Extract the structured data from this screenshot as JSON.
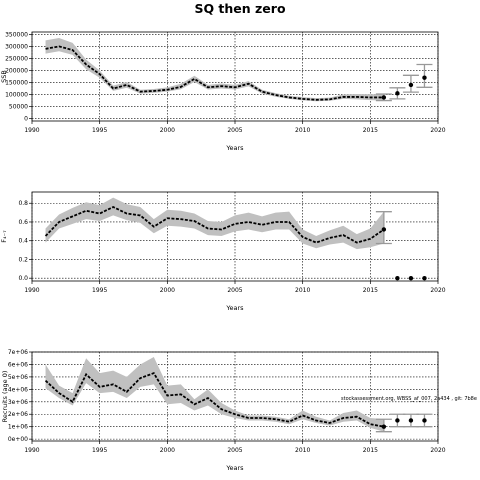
{
  "figure": {
    "title": "SQ then zero",
    "annotation": "stockassessment.org, WBSS_af_007, 2a434 , git: 7b8e"
  },
  "colors": {
    "band": "#c0c0c0",
    "line": "#000000",
    "proj_bar": "#999999",
    "grid": "#000000"
  },
  "chart_data": [
    {
      "type": "line",
      "title": "",
      "xlabel": "Years",
      "ylabel": "SSB",
      "xlim": [
        1990,
        2020
      ],
      "ylim": [
        -10000,
        360000
      ],
      "x_ticks": [
        "1990",
        "1995",
        "2000",
        "2005",
        "2010",
        "2015",
        "2020"
      ],
      "x_tick_values": [
        1990,
        1995,
        2000,
        2005,
        2010,
        2015,
        2020
      ],
      "y_ticks": [
        "0",
        "50000",
        "100000",
        "150000",
        "200000",
        "250000",
        "300000",
        "350000"
      ],
      "y_tick_values": [
        0,
        50000,
        100000,
        150000,
        200000,
        250000,
        300000,
        350000
      ],
      "grid": true,
      "years": [
        1991,
        1992,
        1993,
        1994,
        1995,
        1996,
        1997,
        1998,
        1999,
        2000,
        2001,
        2002,
        2003,
        2004,
        2005,
        2006,
        2007,
        2008,
        2009,
        2010,
        2011,
        2012,
        2013,
        2014,
        2015,
        2016
      ],
      "estimate": [
        290000,
        300000,
        285000,
        225000,
        185000,
        125000,
        140000,
        112000,
        115000,
        120000,
        132000,
        165000,
        130000,
        135000,
        130000,
        145000,
        112000,
        98000,
        88000,
        82000,
        78000,
        80000,
        90000,
        90000,
        88000,
        88000
      ],
      "lower": [
        270000,
        280000,
        265000,
        205000,
        170000,
        115000,
        128000,
        104000,
        107000,
        112000,
        122000,
        152000,
        121000,
        125000,
        121000,
        134000,
        104000,
        91000,
        82000,
        76000,
        72000,
        74000,
        82000,
        80000,
        77000,
        75000
      ],
      "upper": [
        325000,
        335000,
        315000,
        245000,
        200000,
        137000,
        152000,
        120000,
        123000,
        130000,
        145000,
        178000,
        140000,
        146000,
        140000,
        156000,
        120000,
        106000,
        95000,
        89000,
        85000,
        87000,
        100000,
        102000,
        101000,
        102000
      ],
      "projection_years": [
        2016,
        2017,
        2018,
        2019
      ],
      "projection_values": [
        88000,
        105000,
        140000,
        170000
      ],
      "projection_lower": [
        75000,
        82000,
        110000,
        130000
      ],
      "projection_upper": [
        102000,
        128000,
        180000,
        225000
      ]
    },
    {
      "type": "line",
      "title": "",
      "xlabel": "Years",
      "ylabel": "F₄₋₇",
      "xlim": [
        1990,
        2020
      ],
      "ylim": [
        -0.03,
        0.92
      ],
      "x_ticks": [
        "1990",
        "1995",
        "2000",
        "2005",
        "2010",
        "2015",
        "2020"
      ],
      "x_tick_values": [
        1990,
        1995,
        2000,
        2005,
        2010,
        2015,
        2020
      ],
      "y_ticks": [
        "0.0",
        "0.2",
        "0.4",
        "0.6",
        "0.8"
      ],
      "y_tick_values": [
        0.0,
        0.2,
        0.4,
        0.6,
        0.8
      ],
      "grid": true,
      "years": [
        1991,
        1992,
        1993,
        1994,
        1995,
        1996,
        1997,
        1998,
        1999,
        2000,
        2001,
        2002,
        2003,
        2004,
        2005,
        2006,
        2007,
        2008,
        2009,
        2010,
        2011,
        2012,
        2013,
        2014,
        2015,
        2016
      ],
      "estimate": [
        0.45,
        0.6,
        0.66,
        0.72,
        0.69,
        0.76,
        0.69,
        0.67,
        0.55,
        0.64,
        0.63,
        0.61,
        0.53,
        0.52,
        0.58,
        0.6,
        0.57,
        0.6,
        0.6,
        0.44,
        0.38,
        0.43,
        0.46,
        0.38,
        0.42,
        0.52
      ],
      "lower": [
        0.38,
        0.53,
        0.58,
        0.63,
        0.61,
        0.67,
        0.62,
        0.59,
        0.48,
        0.56,
        0.55,
        0.53,
        0.46,
        0.45,
        0.5,
        0.52,
        0.49,
        0.52,
        0.52,
        0.37,
        0.32,
        0.36,
        0.38,
        0.31,
        0.33,
        0.37
      ],
      "upper": [
        0.53,
        0.68,
        0.75,
        0.81,
        0.78,
        0.86,
        0.79,
        0.76,
        0.63,
        0.73,
        0.72,
        0.69,
        0.61,
        0.6,
        0.67,
        0.7,
        0.66,
        0.7,
        0.71,
        0.52,
        0.45,
        0.51,
        0.56,
        0.47,
        0.53,
        0.71
      ],
      "projection_years": [
        2016,
        2017,
        2018,
        2019
      ],
      "projection_values": [
        0.52,
        0.0,
        0.0,
        0.0
      ],
      "projection_lower": [
        0.37,
        0.0,
        0.0,
        0.0
      ],
      "projection_upper": [
        0.71,
        0.0,
        0.0,
        0.0
      ]
    },
    {
      "type": "line",
      "title": "",
      "xlabel": "Years",
      "ylabel": "Recruits (age 0)",
      "xlim": [
        1990,
        2020
      ],
      "ylim": [
        -150000,
        7000000
      ],
      "x_ticks": [
        "1990",
        "1995",
        "2000",
        "2005",
        "2010",
        "2015",
        "2020"
      ],
      "x_tick_values": [
        1990,
        1995,
        2000,
        2005,
        2010,
        2015,
        2020
      ],
      "y_ticks": [
        "0e+00",
        "1e+06",
        "2e+06",
        "3e+06",
        "4e+06",
        "5e+06",
        "6e+06",
        "7e+06"
      ],
      "y_tick_values": [
        0,
        1000000,
        2000000,
        3000000,
        4000000,
        5000000,
        6000000,
        7000000
      ],
      "grid": true,
      "years": [
        1991,
        1992,
        1993,
        1994,
        1995,
        1996,
        1997,
        1998,
        1999,
        2000,
        2001,
        2002,
        2003,
        2004,
        2005,
        2006,
        2007,
        2008,
        2009,
        2010,
        2011,
        2012,
        2013,
        2014,
        2015,
        2016
      ],
      "estimate": [
        4700000,
        3700000,
        3000000,
        5200000,
        4200000,
        4400000,
        3800000,
        4900000,
        5300000,
        3500000,
        3600000,
        2800000,
        3300000,
        2400000,
        2000000,
        1700000,
        1700000,
        1600000,
        1400000,
        1900000,
        1500000,
        1300000,
        1700000,
        1800000,
        1200000,
        1000000
      ],
      "lower": [
        4100000,
        3300000,
        2700000,
        4500000,
        3700000,
        3800000,
        3300000,
        4200000,
        4400000,
        2800000,
        2900000,
        2300000,
        2700000,
        2000000,
        1700000,
        1500000,
        1500000,
        1400000,
        1200000,
        1600000,
        1300000,
        1100000,
        1400000,
        1500000,
        900000,
        600000
      ],
      "upper": [
        6000000,
        4300000,
        3700000,
        6500000,
        5300000,
        5500000,
        5000000,
        6000000,
        6600000,
        4300000,
        4400000,
        3200000,
        4000000,
        2900000,
        2300000,
        1900000,
        1900000,
        1800000,
        1600000,
        2300000,
        1800000,
        1500000,
        2100000,
        2300000,
        1700000,
        1600000
      ],
      "projection_years": [
        2016,
        2017,
        2018,
        2019
      ],
      "projection_values": [
        1000000,
        1500000,
        1500000,
        1500000
      ],
      "projection_lower": [
        600000,
        1000000,
        1000000,
        1000000
      ],
      "projection_upper": [
        1600000,
        2000000,
        2000000,
        2000000
      ]
    }
  ]
}
